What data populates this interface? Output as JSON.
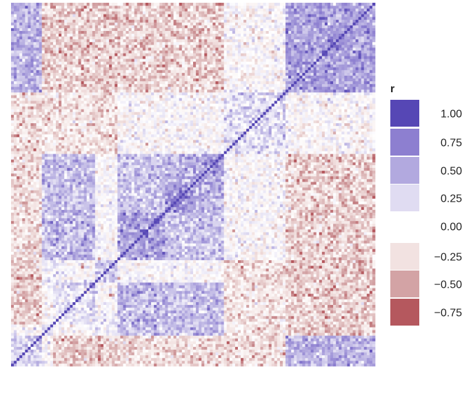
{
  "chart_data": {
    "type": "heatmap",
    "title": "",
    "xlabel": "",
    "ylabel": "",
    "n_variables": 130,
    "diagonal_value": 1.0,
    "value_range": [
      -0.75,
      1.0
    ],
    "colorscale": [
      {
        "value": -0.75,
        "color": "#b5585e"
      },
      {
        "value": -0.5,
        "color": "#d3a3a5"
      },
      {
        "value": -0.25,
        "color": "#f2e2e1"
      },
      {
        "value": 0.0,
        "color": "#ffffff"
      },
      {
        "value": 0.25,
        "color": "#e0dcf2"
      },
      {
        "value": 0.5,
        "color": "#b2a9df"
      },
      {
        "value": 0.75,
        "color": "#8d7fd0"
      },
      {
        "value": 1.0,
        "color": "#5647b5"
      }
    ],
    "clusters": [
      {
        "start": 0,
        "end": 11,
        "mean_r": 0.3
      },
      {
        "start": 11,
        "end": 15,
        "mean_r": 0.35
      },
      {
        "start": 15,
        "end": 30,
        "mean_r": 0.2
      },
      {
        "start": 30,
        "end": 38,
        "mean_r": 0.35
      },
      {
        "start": 38,
        "end": 55,
        "mean_r": 0.55
      },
      {
        "start": 55,
        "end": 65,
        "mean_r": 0.6
      },
      {
        "start": 65,
        "end": 76,
        "mean_r": 0.55
      },
      {
        "start": 76,
        "end": 98,
        "mean_r": 0.2
      },
      {
        "start": 98,
        "end": 130,
        "mean_r": 0.55
      }
    ],
    "block_correlations": [
      {
        "rows": [
          0,
          11
        ],
        "cols": [
          98,
          130
        ],
        "mean_r": 0.45
      },
      {
        "rows": [
          0,
          11
        ],
        "cols": [
          15,
          38
        ],
        "mean_r": -0.3
      },
      {
        "rows": [
          0,
          11
        ],
        "cols": [
          38,
          98
        ],
        "mean_r": -0.25
      },
      {
        "rows": [
          11,
          30
        ],
        "cols": [
          38,
          76
        ],
        "mean_r": 0.4
      },
      {
        "rows": [
          11,
          30
        ],
        "cols": [
          76,
          98
        ],
        "mean_r": -0.2
      },
      {
        "rows": [
          11,
          30
        ],
        "cols": [
          98,
          130
        ],
        "mean_r": -0.3
      },
      {
        "rows": [
          30,
          38
        ],
        "cols": [
          76,
          98
        ],
        "mean_r": -0.25
      },
      {
        "rows": [
          30,
          38
        ],
        "cols": [
          98,
          130
        ],
        "mean_r": -0.35
      },
      {
        "rows": [
          38,
          76
        ],
        "cols": [
          98,
          130
        ],
        "mean_r": -0.3
      },
      {
        "rows": [
          38,
          55
        ],
        "cols": [
          55,
          76
        ],
        "mean_r": 0.35
      },
      {
        "rows": [
          55,
          65
        ],
        "cols": [
          65,
          76
        ],
        "mean_r": 0.45
      }
    ],
    "legend": {
      "title": "r",
      "placement": "right",
      "entries": [
        {
          "label": "1.00",
          "value": 1.0,
          "color": "#5647b5"
        },
        {
          "label": "0.75",
          "value": 0.75,
          "color": "#8d7fd0"
        },
        {
          "label": "0.50",
          "value": 0.5,
          "color": "#b2a9df"
        },
        {
          "label": "0.25",
          "value": 0.25,
          "color": "#e0dcf2"
        },
        {
          "label": "0.00",
          "value": 0.0,
          "color": "#ffffff"
        },
        {
          "label": "−0.25",
          "value": -0.25,
          "color": "#f2e2e1"
        },
        {
          "label": "−0.50",
          "value": -0.5,
          "color": "#d3a3a5"
        },
        {
          "label": "−0.75",
          "value": -0.75,
          "color": "#b5585e"
        }
      ]
    }
  }
}
